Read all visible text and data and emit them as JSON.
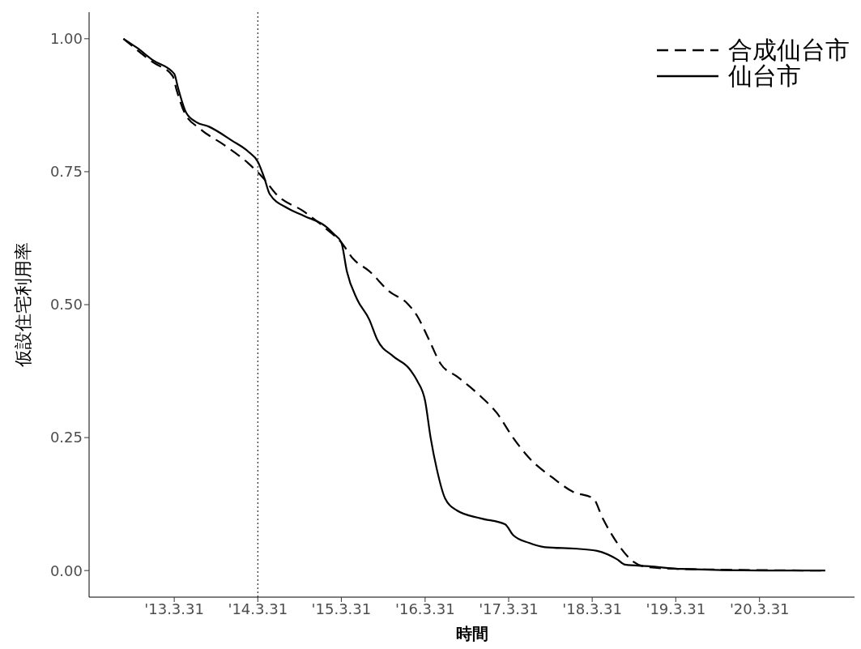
{
  "chart_data": {
    "type": "line",
    "xlabel": "時間",
    "ylabel": "仮設住宅利用率",
    "xlim": [
      "2012-03-24",
      "2021-05-20"
    ],
    "ylim": [
      -0.05,
      1.05
    ],
    "xticks": [
      {
        "value": "2013-03-31",
        "label": "'13.3.31"
      },
      {
        "value": "2014-03-31",
        "label": "'14.3.31"
      },
      {
        "value": "2015-03-31",
        "label": "'15.3.31"
      },
      {
        "value": "2016-03-31",
        "label": "'16.3.31"
      },
      {
        "value": "2017-03-31",
        "label": "'17.3.31"
      },
      {
        "value": "2018-03-31",
        "label": "'18.3.31"
      },
      {
        "value": "2019-03-31",
        "label": "'19.3.31"
      },
      {
        "value": "2020-03-31",
        "label": "'20.3.31"
      }
    ],
    "yticks": [
      {
        "value": 0,
        "label": "0.00"
      },
      {
        "value": 0.25,
        "label": "0.25"
      },
      {
        "value": 0.5,
        "label": "0.50"
      },
      {
        "value": 0.75,
        "label": "0.75"
      },
      {
        "value": 1,
        "label": "1.00"
      }
    ],
    "grid": false,
    "legend": "top right",
    "marker": "none",
    "ref_lines": [
      {
        "axis": "x",
        "value": "2014-03-31",
        "color": "#000000",
        "line_style": "dotted"
      }
    ],
    "series": [
      {
        "name": "合成仙台市",
        "color": "#000000",
        "line_style": "dashed",
        "x": [
          "2012-08-21",
          "2012-12-27",
          "2013-03-24",
          "2013-04-10",
          "2013-05-15",
          "2013-07-24",
          "2013-11-05",
          "2014-02-17",
          "2014-04-28",
          "2014-06-19",
          "2014-10-19",
          "2015-01-31",
          "2015-03-31",
          "2015-05-22",
          "2015-07-31",
          "2015-10-26",
          "2016-01-14",
          "2016-02-25",
          "2016-04-17",
          "2016-06-08",
          "2016-08-17",
          "2016-11-30",
          "2017-02-08",
          "2017-04-19",
          "2017-06-28",
          "2017-10-11",
          "2018-01-06",
          "2018-04-04",
          "2018-05-16",
          "2018-07-18",
          "2018-09-26",
          "2018-12-05",
          "2019-04-25",
          "2021-01-12"
        ],
        "values": [
          1.0,
          0.956,
          0.93,
          0.904,
          0.861,
          0.83,
          0.8,
          0.766,
          0.736,
          0.708,
          0.675,
          0.64,
          0.617,
          0.586,
          0.563,
          0.525,
          0.502,
          0.479,
          0.434,
          0.388,
          0.365,
          0.327,
          0.296,
          0.25,
          0.212,
          0.174,
          0.148,
          0.136,
          0.098,
          0.052,
          0.017,
          0.006,
          0.003,
          0.0
        ]
      },
      {
        "name": "仙台市",
        "color": "#000000",
        "line_style": "solid",
        "x": [
          "2012-08-21",
          "2012-10-19",
          "2012-12-27",
          "2013-03-31",
          "2013-04-17",
          "2013-05-22",
          "2013-07-06",
          "2013-08-28",
          "2013-12-10",
          "2014-02-17",
          "2014-03-31",
          "2014-04-28",
          "2014-05-22",
          "2014-08-10",
          "2014-10-19",
          "2015-01-31",
          "2015-02-28",
          "2015-03-31",
          "2015-04-24",
          "2015-06-08",
          "2015-07-31",
          "2015-09-04",
          "2015-11-12",
          "2016-01-21",
          "2016-02-25",
          "2016-03-31",
          "2016-04-24",
          "2016-05-22",
          "2016-06-26",
          "2016-08-17",
          "2016-11-30",
          "2017-03-15",
          "2017-04-19",
          "2017-06-28",
          "2017-09-06",
          "2018-01-24",
          "2018-04-21",
          "2018-07-18",
          "2018-08-22",
          "2018-12-05",
          "2019-04-25",
          "2020-04-13",
          "2021-01-12"
        ],
        "values": [
          1.0,
          0.983,
          0.96,
          0.934,
          0.907,
          0.861,
          0.843,
          0.835,
          0.808,
          0.788,
          0.769,
          0.739,
          0.708,
          0.681,
          0.667,
          0.644,
          0.632,
          0.617,
          0.563,
          0.51,
          0.472,
          0.434,
          0.403,
          0.38,
          0.357,
          0.319,
          0.25,
          0.189,
          0.136,
          0.113,
          0.098,
          0.087,
          0.067,
          0.052,
          0.044,
          0.041,
          0.037,
          0.021,
          0.011,
          0.008,
          0.003,
          0.0,
          0.0
        ]
      }
    ]
  }
}
